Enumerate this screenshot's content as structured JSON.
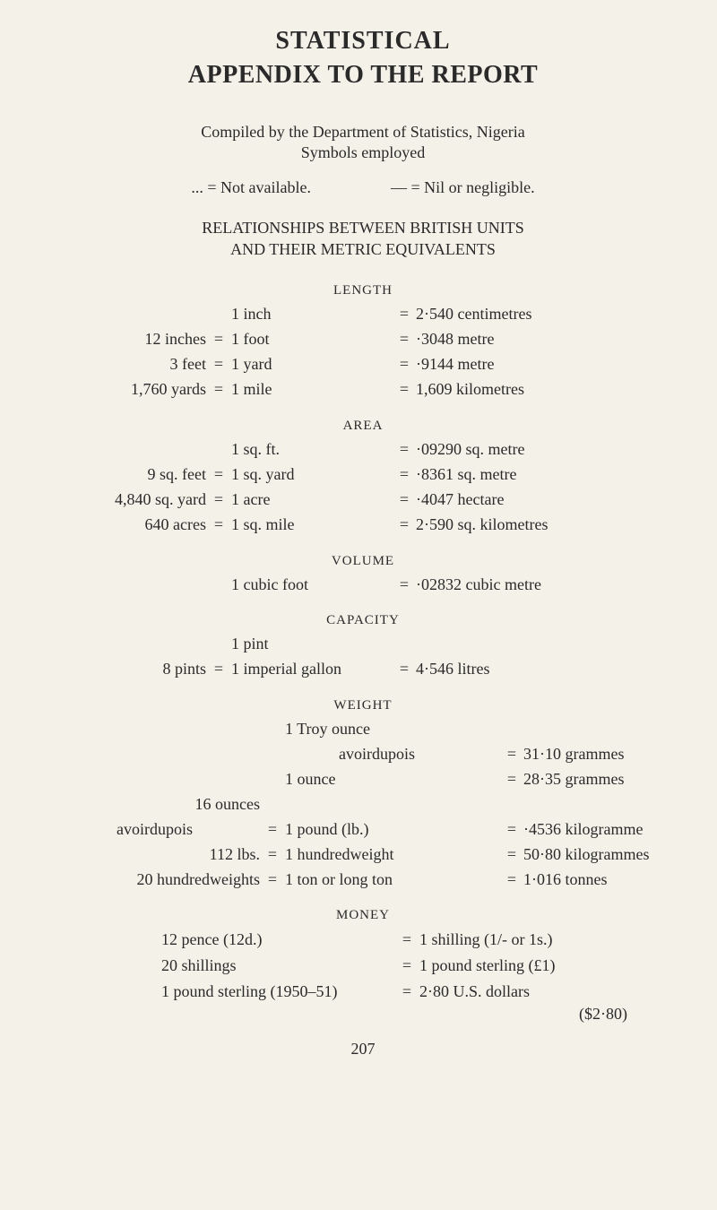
{
  "title1": "STATISTICAL",
  "title2": "APPENDIX TO THE REPORT",
  "compiled": "Compiled by the Department of Statistics, Nigeria",
  "symbols_line": "Symbols employed",
  "sym_left": "... = Not available.",
  "sym_right": "— = Nil or negligible.",
  "rel1": "RELATIONSHIPS BETWEEN BRITISH UNITS",
  "rel2": "AND THEIR METRIC EQUIVALENTS",
  "sections": {
    "length": {
      "label": "LENGTH",
      "rows": [
        {
          "l": "",
          "m": "1 inch",
          "r": "2·540 centimetres"
        },
        {
          "l": "12 inches",
          "m": "1 foot",
          "r": "·3048 metre"
        },
        {
          "l": "3 feet",
          "m": "1 yard",
          "r": "·9144 metre"
        },
        {
          "l": "1,760 yards",
          "m": "1 mile",
          "r": "1,609 kilometres"
        }
      ]
    },
    "area": {
      "label": "AREA",
      "rows": [
        {
          "l": "",
          "m": "1 sq. ft.",
          "r": "·09290 sq. metre"
        },
        {
          "l": "9 sq. feet",
          "m": "1 sq. yard",
          "r": "·8361 sq. metre"
        },
        {
          "l": "4,840 sq. yard",
          "m": "1 acre",
          "r": "·4047 hectare"
        },
        {
          "l": "640 acres",
          "m": "1 sq. mile",
          "r": "2·590 sq. kilometres"
        }
      ]
    },
    "volume": {
      "label": "VOLUME",
      "rows": [
        {
          "l": "",
          "m": "1 cubic foot",
          "r": "·02832 cubic metre"
        }
      ]
    },
    "capacity": {
      "label": "CAPACITY",
      "rows": [
        {
          "l": "",
          "m": "1 pint",
          "r": "",
          "noeq": true
        },
        {
          "l": "8 pints",
          "m": "1 imperial gallon",
          "r": "4·546 litres"
        }
      ]
    },
    "weight": {
      "label": "WEIGHT",
      "rows": [
        {
          "l": "",
          "m": "1 Troy ounce",
          "r": "",
          "noeq": true,
          "noreq": true
        },
        {
          "l": "",
          "m": "avoirdupois",
          "r": "31·10 grammes",
          "noeq": true,
          "indent": true
        },
        {
          "l": "",
          "m": "1 ounce",
          "r": "28·35 grammes",
          "noeq": true
        },
        {
          "l": "16 ounces",
          "m": "",
          "r": "",
          "noeq": true,
          "noreq": true
        },
        {
          "l": "avoirdupois",
          "m": "1 pound (lb.)",
          "r": "·4536 kilogramme",
          "lindent": true
        },
        {
          "l": "112 lbs.",
          "m": "1 hundredweight",
          "r": "50·80 kilogrammes"
        },
        {
          "l": "20 hundredweights",
          "m": "1 ton or long ton",
          "r": "1·016 tonnes"
        }
      ]
    },
    "money": {
      "label": "MONEY",
      "rows": [
        {
          "l": "12 pence (12d.)",
          "r": "1 shilling (1/- or 1s.)"
        },
        {
          "l": "20 shillings",
          "r": "1 pound sterling (£1)"
        },
        {
          "l": "1 pound sterling (1950–51)",
          "r": "2·80 U.S. dollars"
        }
      ],
      "note": "($2·80)"
    }
  },
  "page_number": "207"
}
